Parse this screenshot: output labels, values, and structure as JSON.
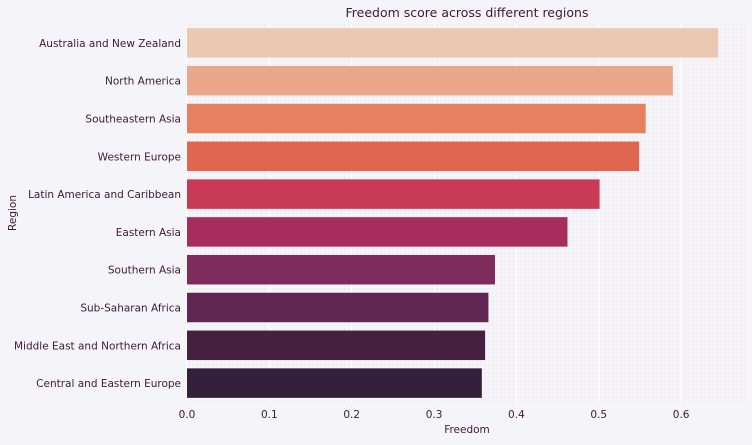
{
  "chart_data": {
    "type": "bar",
    "orientation": "horizontal",
    "title": "Freedom score across different regions",
    "xlabel": "Freedom",
    "ylabel": "Region",
    "xlim": [
      0,
      0.68
    ],
    "xticks": [
      "0.0",
      "0.1",
      "0.2",
      "0.3",
      "0.4",
      "0.5",
      "0.6"
    ],
    "categories": [
      "Australia and New Zealand",
      "North America",
      "Southeastern Asia",
      "Western Europe",
      "Latin America and Caribbean",
      "Eastern Asia",
      "Southern Asia",
      "Sub-Saharan Africa",
      "Middle East and Northern Africa",
      "Central and Eastern Europe"
    ],
    "values": [
      0.645,
      0.59,
      0.557,
      0.549,
      0.501,
      0.462,
      0.374,
      0.366,
      0.362,
      0.358
    ],
    "colors": [
      "#ebc8b1",
      "#eaa88b",
      "#e6805f",
      "#e1664f",
      "#c93b55",
      "#a72e5c",
      "#7e2c5c",
      "#5e2853",
      "#45213f",
      "#33203a"
    ],
    "grid": true,
    "background": "#f5f4f9",
    "text_color": "#3d1a34"
  }
}
